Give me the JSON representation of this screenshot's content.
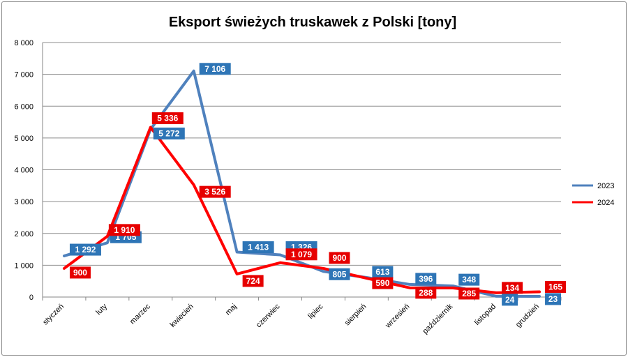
{
  "chart_data": {
    "type": "line",
    "title": "Eksport świeżych truskawek z Polski [tony]",
    "categories": [
      "styczeń",
      "luty",
      "marzec",
      "kwiecień",
      "maj",
      "czerwiec",
      "lipiec",
      "sierpień",
      "wrzesień",
      "październik",
      "listopad",
      "grudzień"
    ],
    "y_ticks": [
      "0",
      "1 000",
      "2 000",
      "3 000",
      "4 000",
      "5 000",
      "6 000",
      "7 000",
      "8 000"
    ],
    "ylim": [
      0,
      8000
    ],
    "grid": true,
    "legend_position": "right",
    "series": [
      {
        "name": "2023",
        "color": "#4f81bd",
        "label_bg": "#2e75b6",
        "values": [
          1292,
          1705,
          5272,
          7106,
          1413,
          1326,
          805,
          613,
          396,
          348,
          24,
          23
        ],
        "labels": [
          "1 292",
          "1 705",
          "5 272",
          "7 106",
          "1 413",
          "1 326",
          "805",
          "613",
          "396",
          "348",
          "24",
          "23"
        ]
      },
      {
        "name": "2024",
        "color": "#ff0000",
        "label_bg": "#e60000",
        "values": [
          900,
          1910,
          5336,
          3526,
          724,
          1079,
          900,
          590,
          288,
          285,
          134,
          165
        ],
        "labels": [
          "900",
          "1 910",
          "5 336",
          "3 526",
          "724",
          "1 079",
          "900",
          "590",
          "288",
          "285",
          "134",
          "165"
        ]
      }
    ]
  }
}
